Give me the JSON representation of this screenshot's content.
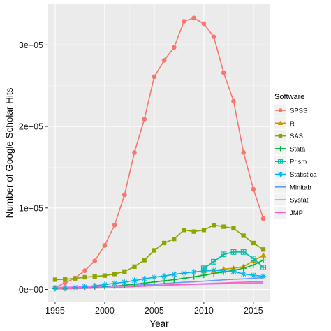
{
  "chart_data": {
    "type": "line",
    "xlabel": "Year",
    "ylabel": "Number of Google Scholar Hits",
    "xlim": [
      1994.3,
      2016.7
    ],
    "ylim": [
      -15000,
      350000
    ],
    "x_ticks": [
      1995,
      2000,
      2005,
      2010,
      2015
    ],
    "x_tick_labels": [
      "1995",
      "2000",
      "2005",
      "2010",
      "2015"
    ],
    "y_ticks": [
      0,
      100000,
      200000,
      300000
    ],
    "y_tick_labels": [
      "0e+00",
      "1e+05",
      "2e+05",
      "3e+05"
    ],
    "grid": true,
    "legend": {
      "title": "Software",
      "placement": "right"
    },
    "x": [
      1995,
      1996,
      1997,
      1998,
      1999,
      2000,
      2001,
      2002,
      2003,
      2004,
      2005,
      2006,
      2007,
      2008,
      2009,
      2010,
      2011,
      2012,
      2013,
      2014,
      2015,
      2016
    ],
    "series": [
      {
        "name": "SPSS",
        "color": "#F8766D",
        "marker": "circle",
        "values": [
          2500,
          8000,
          14000,
          23000,
          35000,
          54000,
          79000,
          116000,
          168000,
          209000,
          261000,
          281000,
          297000,
          329000,
          333000,
          326000,
          310000,
          266000,
          231000,
          168000,
          123000,
          87000
        ]
      },
      {
        "name": "R",
        "color": "#C49A00",
        "marker": "triangle",
        "values": [
          null,
          null,
          null,
          null,
          null,
          null,
          null,
          null,
          null,
          null,
          null,
          null,
          null,
          null,
          null,
          23000,
          23000,
          25000,
          26000,
          28000,
          35000,
          42000
        ]
      },
      {
        "name": "SAS",
        "color": "#8EA400",
        "marker": "square",
        "values": [
          12000,
          12500,
          13500,
          15000,
          16000,
          17000,
          19000,
          22000,
          28000,
          36000,
          48000,
          57000,
          62000,
          73000,
          71000,
          73000,
          79000,
          77000,
          75000,
          66000,
          57000,
          49000
        ]
      },
      {
        "name": "Stata",
        "color": "#00BA38",
        "marker": "plus",
        "values": [
          1000,
          1300,
          1700,
          2200,
          2800,
          3500,
          4300,
          5300,
          6500,
          7800,
          9200,
          10600,
          12000,
          13800,
          15500,
          17500,
          19500,
          21500,
          23500,
          26000,
          30000,
          36000
        ]
      },
      {
        "name": "Prism",
        "color": "#00BFA4",
        "marker": "square-cross",
        "values": [
          null,
          null,
          null,
          null,
          null,
          null,
          null,
          null,
          null,
          null,
          null,
          null,
          null,
          null,
          null,
          26000,
          34000,
          43000,
          46000,
          46000,
          38000,
          27000
        ]
      },
      {
        "name": "Statistica",
        "color": "#00B4EF",
        "marker": "asterisk",
        "values": [
          1500,
          2000,
          2500,
          3500,
          4500,
          6000,
          7500,
          9000,
          11000,
          13000,
          15000,
          16500,
          18500,
          20000,
          21500,
          22500,
          23500,
          22500,
          22000,
          19000,
          17500,
          16000
        ]
      },
      {
        "name": "Minitab",
        "color": "#619CFF",
        "marker": "none",
        "values": [
          2000,
          2200,
          2500,
          2800,
          3100,
          3600,
          4100,
          4600,
          5200,
          5800,
          6500,
          7300,
          8100,
          8800,
          9500,
          10200,
          11000,
          11800,
          12500,
          13000,
          13800,
          14500
        ]
      },
      {
        "name": "Systat",
        "color": "#DB72FB",
        "marker": "none",
        "values": [
          2500,
          2700,
          3000,
          3300,
          3500,
          3900,
          4200,
          4500,
          4800,
          5000,
          5300,
          5600,
          5800,
          6000,
          6300,
          6500,
          6800,
          7000,
          7200,
          7500,
          7800,
          8000
        ]
      },
      {
        "name": "JMP",
        "color": "#FF61C3",
        "marker": "none",
        "values": [
          500,
          700,
          900,
          1200,
          1600,
          2000,
          2500,
          3000,
          3500,
          4000,
          4500,
          5000,
          5500,
          6000,
          6500,
          7000,
          7500,
          8000,
          8500,
          9000,
          9300,
          9500
        ]
      }
    ]
  }
}
